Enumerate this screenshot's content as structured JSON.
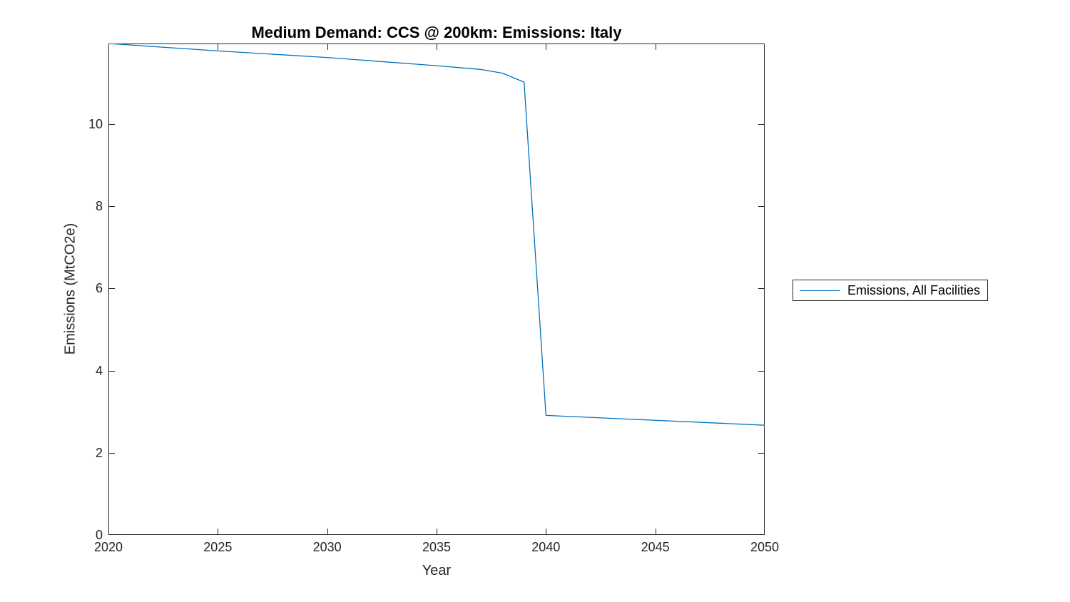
{
  "colors": {
    "line": "#0072BD",
    "axis": "#262626",
    "text": "#262626",
    "title": "#000000",
    "background": "#ffffff"
  },
  "legend": {
    "entries": [
      {
        "label": "Emissions, All Facilities",
        "color": "#0072BD"
      }
    ],
    "position": "right-outside",
    "border": true
  },
  "chart_data": {
    "type": "line",
    "title": "Medium Demand: CCS @ 200km: Emissions: Italy",
    "xlabel": "Year",
    "ylabel": "Emissions (MtCO2e)",
    "xlim": [
      2020,
      2050
    ],
    "ylim": [
      0,
      11.96
    ],
    "x_ticks": [
      2020,
      2025,
      2030,
      2035,
      2040,
      2045,
      2050
    ],
    "y_ticks": [
      0,
      2,
      4,
      6,
      8,
      10
    ],
    "grid": false,
    "box": true,
    "tick_direction": "in",
    "legend_position": "right-outside",
    "series": [
      {
        "name": "Emissions, All Facilities",
        "color": "#0072BD",
        "x": [
          2020,
          2025,
          2030,
          2035,
          2037,
          2038,
          2039,
          2040,
          2045,
          2050
        ],
        "y": [
          11.96,
          11.78,
          11.62,
          11.42,
          11.33,
          11.24,
          11.02,
          2.91,
          2.79,
          2.67
        ]
      }
    ]
  }
}
